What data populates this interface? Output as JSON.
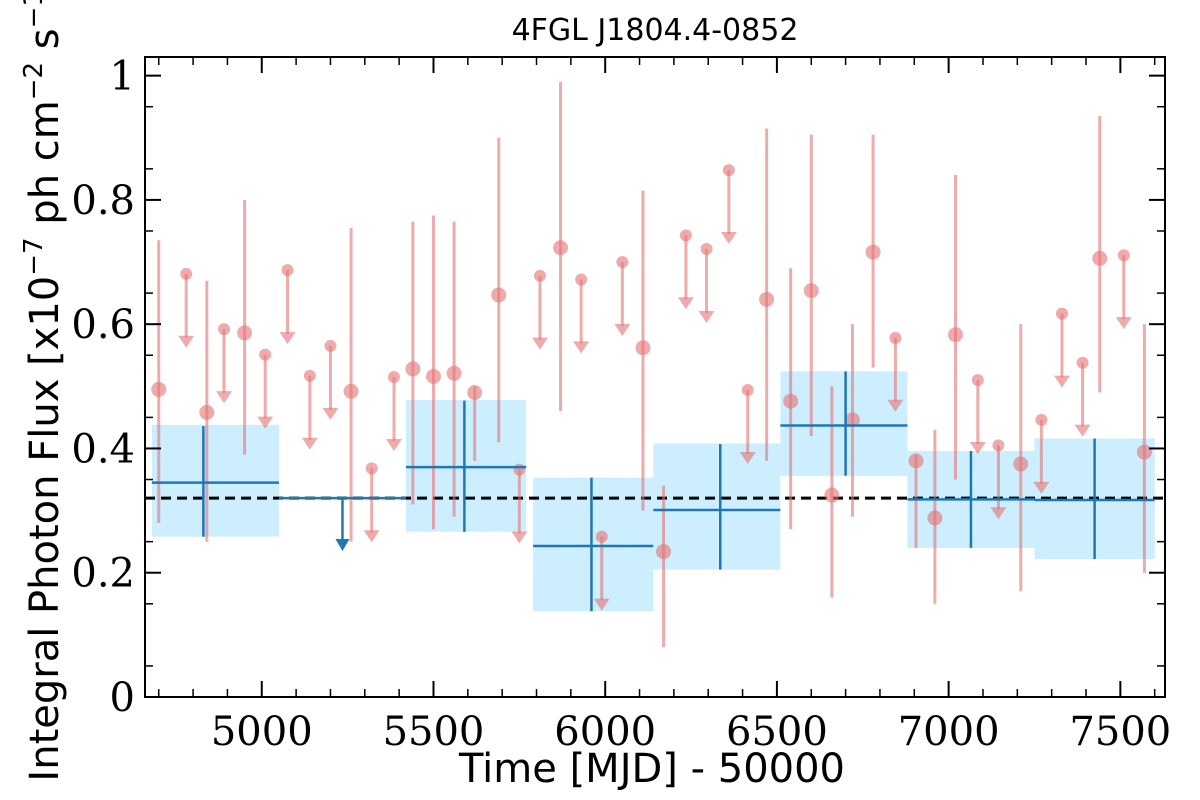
{
  "chart_data": {
    "type": "scatter",
    "title": "4FGL J1804.4-0852",
    "xlabel": "Time [MJD] - 50000",
    "ylabel": {
      "base": "Integral Photon Flux [x10",
      "exp1": "−7",
      "mid": " ph cm",
      "exp2": "−2",
      "mid2": " s",
      "exp3": "−1",
      "end": "]"
    },
    "xlim": [
      4660,
      7630
    ],
    "ylim": [
      0,
      1.03
    ],
    "xticks": [
      5000,
      5500,
      6000,
      6500,
      7000,
      7500
    ],
    "xtick_labels": [
      "5000",
      "5500",
      "6000",
      "6500",
      "7000",
      "7500"
    ],
    "yticks": [
      0,
      0.2,
      0.4,
      0.6,
      0.8,
      1
    ],
    "ytick_labels": [
      "0",
      "0.2",
      "0.4",
      "0.6",
      "0.8",
      "1"
    ],
    "reference_line": {
      "y": 0.32,
      "style": "dashed",
      "color": "#000000"
    },
    "colors": {
      "short_bins": "#e57373",
      "long_bins": "#1f77b4",
      "long_bins_fill": "#cceeff"
    },
    "series": [
      {
        "role": "short-bin detections",
        "points": [
          {
            "x": 4700,
            "y": 0.495,
            "lo": 0.28,
            "hi": 0.735
          },
          {
            "x": 4840,
            "y": 0.458,
            "lo": 0.25,
            "hi": 0.67
          },
          {
            "x": 4950,
            "y": 0.586,
            "lo": 0.39,
            "hi": 0.8
          },
          {
            "x": 5260,
            "y": 0.492,
            "lo": 0.25,
            "hi": 0.755
          },
          {
            "x": 5440,
            "y": 0.528,
            "lo": 0.31,
            "hi": 0.765
          },
          {
            "x": 5500,
            "y": 0.516,
            "lo": 0.27,
            "hi": 0.775
          },
          {
            "x": 5560,
            "y": 0.521,
            "lo": 0.29,
            "hi": 0.765
          },
          {
            "x": 5620,
            "y": 0.49,
            "lo": 0.38,
            "hi": 0.5
          },
          {
            "x": 5690,
            "y": 0.647,
            "lo": 0.41,
            "hi": 0.9
          },
          {
            "x": 5870,
            "y": 0.723,
            "lo": 0.46,
            "hi": 0.99
          },
          {
            "x": 6110,
            "y": 0.562,
            "lo": 0.3,
            "hi": 0.815
          },
          {
            "x": 6170,
            "y": 0.234,
            "lo": 0.08,
            "hi": 0.34
          },
          {
            "x": 6470,
            "y": 0.64,
            "lo": 0.38,
            "hi": 0.915
          },
          {
            "x": 6540,
            "y": 0.476,
            "lo": 0.27,
            "hi": 0.69
          },
          {
            "x": 6600,
            "y": 0.654,
            "lo": 0.42,
            "hi": 0.905
          },
          {
            "x": 6660,
            "y": 0.325,
            "lo": 0.16,
            "hi": 0.5
          },
          {
            "x": 6720,
            "y": 0.446,
            "lo": 0.29,
            "hi": 0.6
          },
          {
            "x": 6780,
            "y": 0.716,
            "lo": 0.53,
            "hi": 0.905
          },
          {
            "x": 6905,
            "y": 0.38,
            "lo": 0.24,
            "hi": 0.39
          },
          {
            "x": 6960,
            "y": 0.288,
            "lo": 0.15,
            "hi": 0.43
          },
          {
            "x": 7020,
            "y": 0.583,
            "lo": 0.35,
            "hi": 0.84
          },
          {
            "x": 7210,
            "y": 0.375,
            "lo": 0.17,
            "hi": 0.6
          },
          {
            "x": 7440,
            "y": 0.706,
            "lo": 0.49,
            "hi": 0.935
          },
          {
            "x": 7570,
            "y": 0.394,
            "lo": 0.2,
            "hi": 0.6
          }
        ]
      },
      {
        "role": "short-bin upper limits",
        "points": [
          {
            "x": 4780,
            "y": 0.681,
            "arrow_to": 0.562
          },
          {
            "x": 4890,
            "y": 0.592,
            "arrow_to": 0.473
          },
          {
            "x": 5010,
            "y": 0.551,
            "arrow_to": 0.432
          },
          {
            "x": 5075,
            "y": 0.687,
            "arrow_to": 0.568
          },
          {
            "x": 5140,
            "y": 0.517,
            "arrow_to": 0.398
          },
          {
            "x": 5200,
            "y": 0.565,
            "arrow_to": 0.446
          },
          {
            "x": 5320,
            "y": 0.368,
            "arrow_to": 0.249
          },
          {
            "x": 5385,
            "y": 0.515,
            "arrow_to": 0.396
          },
          {
            "x": 5750,
            "y": 0.366,
            "arrow_to": 0.247
          },
          {
            "x": 5810,
            "y": 0.678,
            "arrow_to": 0.559
          },
          {
            "x": 5930,
            "y": 0.672,
            "arrow_to": 0.553
          },
          {
            "x": 5990,
            "y": 0.258,
            "arrow_to": 0.139
          },
          {
            "x": 6050,
            "y": 0.7,
            "arrow_to": 0.581
          },
          {
            "x": 6235,
            "y": 0.743,
            "arrow_to": 0.624
          },
          {
            "x": 6295,
            "y": 0.721,
            "arrow_to": 0.602
          },
          {
            "x": 6360,
            "y": 0.848,
            "arrow_to": 0.729
          },
          {
            "x": 6415,
            "y": 0.494,
            "arrow_to": 0.375
          },
          {
            "x": 6845,
            "y": 0.578,
            "arrow_to": 0.459
          },
          {
            "x": 7085,
            "y": 0.51,
            "arrow_to": 0.391
          },
          {
            "x": 7145,
            "y": 0.405,
            "arrow_to": 0.286
          },
          {
            "x": 7270,
            "y": 0.446,
            "arrow_to": 0.327
          },
          {
            "x": 7330,
            "y": 0.617,
            "arrow_to": 0.498
          },
          {
            "x": 7390,
            "y": 0.538,
            "arrow_to": 0.419
          },
          {
            "x": 7510,
            "y": 0.711,
            "arrow_to": 0.592
          }
        ]
      },
      {
        "role": "long-bin detections",
        "points": [
          {
            "x0": 4680,
            "x1": 5050,
            "xc": 4830,
            "y": 0.345,
            "lo": 0.258,
            "hi": 0.436,
            "band_lo": 0.258,
            "band_hi": 0.438
          },
          {
            "x0": 5420,
            "x1": 5770,
            "xc": 5590,
            "y": 0.37,
            "lo": 0.266,
            "hi": 0.477,
            "band_lo": 0.266,
            "band_hi": 0.478
          },
          {
            "x0": 5790,
            "x1": 6140,
            "xc": 5960,
            "y": 0.243,
            "lo": 0.138,
            "hi": 0.353,
            "band_lo": 0.138,
            "band_hi": 0.353
          },
          {
            "x0": 6140,
            "x1": 6510,
            "xc": 6335,
            "y": 0.301,
            "lo": 0.205,
            "hi": 0.407,
            "band_lo": 0.205,
            "band_hi": 0.408
          },
          {
            "x0": 6510,
            "x1": 6880,
            "xc": 6700,
            "y": 0.437,
            "lo": 0.356,
            "hi": 0.524,
            "band_lo": 0.356,
            "band_hi": 0.524
          },
          {
            "x0": 6880,
            "x1": 7250,
            "xc": 7065,
            "y": 0.318,
            "lo": 0.24,
            "hi": 0.396,
            "band_lo": 0.24,
            "band_hi": 0.396
          },
          {
            "x0": 7250,
            "x1": 7600,
            "xc": 7425,
            "y": 0.317,
            "lo": 0.222,
            "hi": 0.416,
            "band_lo": 0.222,
            "band_hi": 0.416
          }
        ]
      },
      {
        "role": "long-bin upper limits",
        "points": [
          {
            "x0": 5050,
            "x1": 5420,
            "xc": 5235,
            "y": 0.32,
            "arrow_to": 0.235
          }
        ]
      }
    ]
  }
}
